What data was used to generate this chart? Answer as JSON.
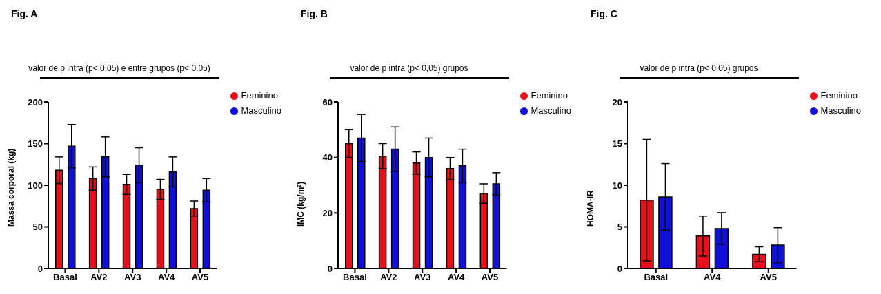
{
  "chart_data": [
    {
      "type": "bar",
      "title": "Fig. A",
      "annotations": [
        "valor de p intra (p< 0,05) e entre grupos (p< 0,05)"
      ],
      "ylabel": "Massa corporal (kg)",
      "categories": [
        "Basal",
        "AV2",
        "AV3",
        "AV4",
        "AV5"
      ],
      "ylim": [
        0,
        200
      ],
      "yticks": [
        0,
        50,
        100,
        150,
        200
      ],
      "legend": "right",
      "series": [
        {
          "name": "Feminino",
          "color": "#e8101a",
          "values": [
            118,
            108,
            101,
            95,
            72
          ],
          "errors": [
            16,
            14,
            12,
            12,
            9
          ]
        },
        {
          "name": "Masculino",
          "color": "#1010d8",
          "values": [
            147,
            134,
            124,
            116,
            94
          ],
          "errors": [
            26,
            24,
            21,
            18,
            14
          ]
        }
      ]
    },
    {
      "type": "bar",
      "title": "Fig. B",
      "annotations": [
        "valor de p intra (p< 0,05) grupos"
      ],
      "ylabel": "IMC (kg/m²)",
      "categories": [
        "Basal",
        "AV2",
        "AV3",
        "AV4",
        "AV5"
      ],
      "ylim": [
        0,
        60
      ],
      "yticks": [
        0,
        20,
        40,
        60
      ],
      "legend": "right",
      "series": [
        {
          "name": "Feminino",
          "color": "#e8101a",
          "values": [
            45,
            40.5,
            38,
            36,
            27
          ],
          "errors": [
            5,
            4.5,
            4,
            4,
            3.5
          ]
        },
        {
          "name": "Masculino",
          "color": "#1010d8",
          "values": [
            47,
            43,
            40,
            37,
            30.5
          ],
          "errors": [
            8.5,
            8,
            7,
            6,
            4
          ]
        }
      ]
    },
    {
      "type": "bar",
      "title": "Fig. C",
      "annotations": [
        "valor de p intra (p< 0,05) grupos"
      ],
      "ylabel": "HOMA-IR",
      "categories": [
        "Basal",
        "AV4",
        "AV5"
      ],
      "ylim": [
        0,
        20
      ],
      "yticks": [
        0,
        5,
        10,
        15,
        20
      ],
      "legend": "right",
      "series": [
        {
          "name": "Feminino",
          "color": "#e8101a",
          "values": [
            8.2,
            3.9,
            1.7
          ],
          "errors": [
            7.3,
            2.4,
            0.9
          ]
        },
        {
          "name": "Masculino",
          "color": "#1010d8",
          "values": [
            8.6,
            4.8,
            2.8
          ],
          "errors": [
            4,
            1.9,
            2.1
          ]
        }
      ]
    }
  ]
}
